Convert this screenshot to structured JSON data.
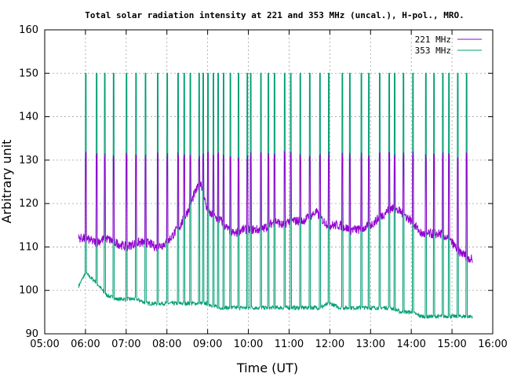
{
  "chart_data": {
    "type": "line",
    "title": "Total solar radiation intensity at 221 and 353 MHz (uncal.), H-pol., MRO.",
    "xlabel": "Time (UT)",
    "ylabel": "Arbitrary unit",
    "xlim": [
      "05:00",
      "16:00"
    ],
    "ylim": [
      90,
      160
    ],
    "x_ticks": [
      "05:00",
      "06:00",
      "07:00",
      "08:00",
      "09:00",
      "10:00",
      "11:00",
      "12:00",
      "13:00",
      "14:00",
      "15:00",
      "16:00"
    ],
    "y_ticks": [
      90,
      100,
      110,
      120,
      130,
      140,
      150,
      160
    ],
    "grid": true,
    "legend_position": "top-right",
    "calibration_pulse_times": [
      "06:00",
      "06:16",
      "06:28",
      "06:41",
      "07:00",
      "07:14",
      "07:28",
      "07:46",
      "08:00",
      "08:16",
      "08:25",
      "08:34",
      "08:47",
      "08:53",
      "09:00",
      "09:08",
      "09:15",
      "09:23",
      "09:33",
      "09:45",
      "09:58",
      "10:03",
      "10:18",
      "10:29",
      "10:38",
      "10:53",
      "11:02",
      "11:16",
      "11:30",
      "11:45",
      "11:58",
      "12:18",
      "12:29",
      "12:46",
      "12:57",
      "13:13",
      "13:27",
      "13:35",
      "13:48",
      "14:02",
      "14:21",
      "14:33",
      "14:46",
      "14:55",
      "15:08",
      "15:21",
      "15:32"
    ],
    "series": [
      {
        "name": "221 MHz",
        "color": "#9400d3",
        "pulse_peak": 132,
        "x": [
          "05:50",
          "06:00",
          "06:15",
          "06:30",
          "06:45",
          "07:00",
          "07:15",
          "07:30",
          "07:45",
          "08:00",
          "08:10",
          "08:20",
          "08:30",
          "08:40",
          "08:50",
          "09:00",
          "09:10",
          "09:20",
          "09:30",
          "09:40",
          "09:50",
          "10:00",
          "10:10",
          "10:20",
          "10:30",
          "10:40",
          "10:50",
          "11:00",
          "11:10",
          "11:20",
          "11:30",
          "11:40",
          "11:50",
          "12:00",
          "12:15",
          "12:30",
          "12:45",
          "13:00",
          "13:15",
          "13:30",
          "13:45",
          "14:00",
          "14:15",
          "14:30",
          "14:45",
          "15:00",
          "15:10",
          "15:20",
          "15:30"
        ],
        "values": [
          112,
          112,
          111,
          112,
          111,
          110,
          111,
          111,
          110,
          111,
          113,
          115,
          118,
          122,
          125,
          118,
          117,
          116,
          114,
          113,
          114,
          114,
          114,
          114,
          115,
          116,
          115,
          116,
          116,
          116,
          117,
          118,
          116,
          115,
          115,
          114,
          114,
          115,
          117,
          119,
          118,
          116,
          113,
          113,
          113,
          111,
          109,
          108,
          107
        ]
      },
      {
        "name": "353 MHz",
        "color": "#009e73",
        "pulse_peak": 150,
        "x": [
          "05:50",
          "06:00",
          "06:15",
          "06:30",
          "06:45",
          "07:00",
          "07:15",
          "07:30",
          "07:45",
          "08:00",
          "08:15",
          "08:30",
          "08:45",
          "09:00",
          "09:15",
          "09:30",
          "09:45",
          "10:00",
          "10:15",
          "10:30",
          "10:45",
          "11:00",
          "11:15",
          "11:30",
          "11:45",
          "12:00",
          "12:15",
          "12:30",
          "12:45",
          "13:00",
          "13:15",
          "13:30",
          "13:45",
          "14:00",
          "14:15",
          "14:30",
          "14:45",
          "15:00",
          "15:15",
          "15:30"
        ],
        "values": [
          101,
          104,
          102,
          99,
          98,
          98,
          98,
          97,
          97,
          97,
          97,
          97,
          97,
          97,
          96,
          96,
          96,
          96,
          96,
          96,
          96,
          96,
          96,
          96,
          96,
          97,
          96,
          96,
          96,
          96,
          96,
          96,
          95,
          95,
          94,
          94,
          94,
          94,
          94,
          94
        ]
      }
    ]
  }
}
